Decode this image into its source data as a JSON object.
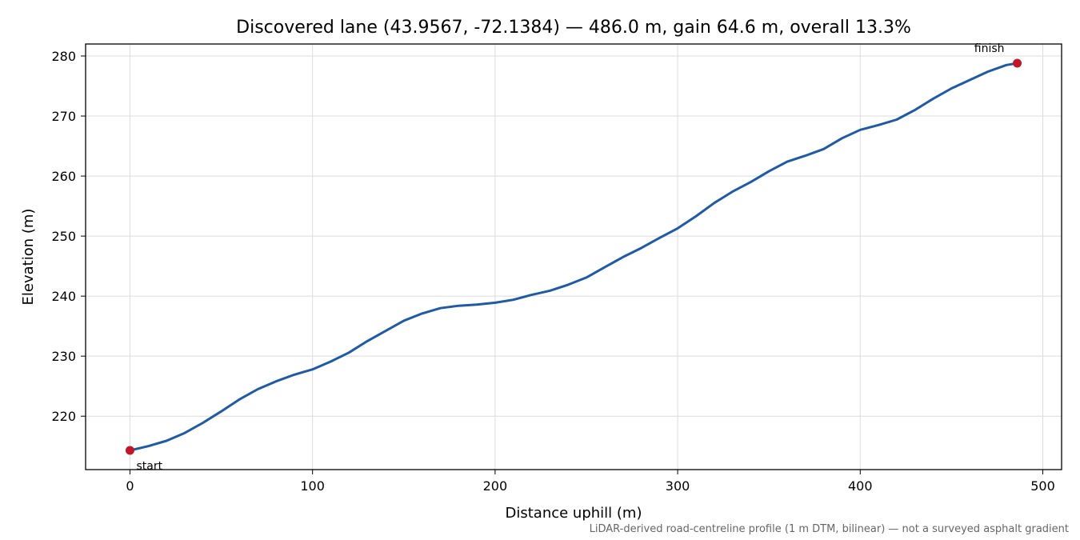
{
  "chart_data": {
    "type": "line",
    "title": "Discovered lane (43.9567, -72.1384) — 486.0 m, gain 64.6 m, overall 13.3%",
    "xlabel": "Distance uphill (m)",
    "ylabel": "Elevation (m)",
    "xlim": [
      -24.3,
      510.3
    ],
    "ylim": [
      211.1,
      282.0
    ],
    "xticks": [
      0,
      100,
      200,
      300,
      400,
      500
    ],
    "yticks": [
      220,
      230,
      240,
      250,
      260,
      270,
      280
    ],
    "grid": true,
    "line_color": "#1f5aa6",
    "marker_color": "#c0182a",
    "series": [
      {
        "x": [
          0,
          10,
          20,
          30,
          40,
          50,
          60,
          70,
          80,
          90,
          100,
          110,
          120,
          130,
          140,
          150,
          160,
          170,
          180,
          190,
          200,
          210,
          220,
          230,
          240,
          250,
          260,
          270,
          280,
          290,
          300,
          310,
          320,
          330,
          340,
          350,
          360,
          370,
          380,
          390,
          400,
          410,
          420,
          430,
          440,
          450,
          460,
          470,
          480,
          486
        ],
        "y": [
          214.3,
          215.0,
          215.9,
          217.2,
          218.9,
          220.8,
          222.8,
          224.5,
          225.8,
          226.9,
          227.8,
          229.1,
          230.6,
          232.5,
          234.2,
          235.9,
          237.1,
          238.0,
          238.4,
          238.6,
          238.9,
          239.4,
          240.2,
          240.9,
          241.9,
          243.1,
          244.8,
          246.5,
          248.0,
          249.7,
          251.3,
          253.3,
          255.5,
          257.4,
          259.0,
          260.8,
          262.4,
          263.4,
          264.5,
          266.3,
          267.7,
          268.5,
          269.4,
          271.0,
          272.9,
          274.6,
          276.0,
          277.4,
          278.5,
          278.8
        ]
      }
    ],
    "annotations": [
      {
        "text": "start",
        "x": 0,
        "y": 214.3
      },
      {
        "text": "finish",
        "x": 486,
        "y": 278.8
      }
    ],
    "footnote": "LiDAR-derived road-centreline profile (1 m DTM, bilinear) — not a surveyed asphalt gradient"
  }
}
